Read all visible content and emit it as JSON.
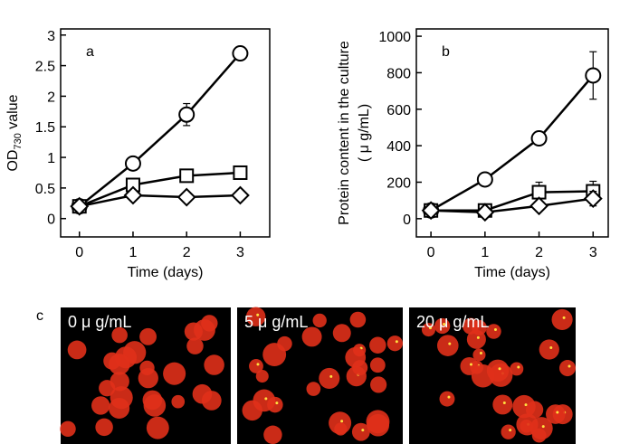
{
  "chart_data": [
    {
      "type": "line",
      "annotation": "a",
      "ylabel": [
        "OD",
        "730",
        " value"
      ],
      "xlabel": "Time (days)",
      "x": [
        0,
        1,
        2,
        3
      ],
      "xlim": [
        -0.35,
        3.55
      ],
      "xticks": [
        0,
        1,
        2,
        3
      ],
      "ylim": [
        -0.3,
        3.1
      ],
      "yticks": [
        0,
        0.5,
        1,
        1.5,
        2,
        2.5,
        3
      ],
      "color": "#000000",
      "series": [
        {
          "marker": "circle",
          "values": [
            0.2,
            0.9,
            1.7,
            2.7
          ],
          "errors": [
            null,
            null,
            0.18,
            null
          ]
        },
        {
          "marker": "square",
          "values": [
            0.2,
            0.55,
            0.7,
            0.75
          ]
        },
        {
          "marker": "diamond",
          "values": [
            0.2,
            0.38,
            0.35,
            0.38
          ]
        }
      ]
    },
    {
      "type": "line",
      "annotation": "b",
      "ylabel": [
        "Protein content in the culture",
        "( μ g/mL)"
      ],
      "xlabel": "Time (days)",
      "x": [
        0,
        1,
        2,
        3
      ],
      "xlim": [
        -0.27,
        3.28
      ],
      "xticks": [
        0,
        1,
        2,
        3
      ],
      "ylim": [
        -100,
        1040
      ],
      "yticks": [
        0,
        200,
        400,
        600,
        800,
        1000
      ],
      "color": "#000000",
      "series": [
        {
          "marker": "circle",
          "values": [
            45,
            215,
            440,
            785
          ],
          "errors": [
            null,
            null,
            null,
            130
          ]
        },
        {
          "marker": "square",
          "values": [
            45,
            45,
            145,
            150
          ],
          "errors": [
            null,
            null,
            55,
            55
          ]
        },
        {
          "marker": "diamond",
          "values": [
            45,
            35,
            70,
            110
          ],
          "errors": [
            null,
            null,
            null,
            40
          ]
        }
      ]
    }
  ],
  "panel_c": {
    "label": "c",
    "images": [
      "0 μ g/mL",
      "5 μ g/mL",
      "20 μ g/mL"
    ]
  }
}
